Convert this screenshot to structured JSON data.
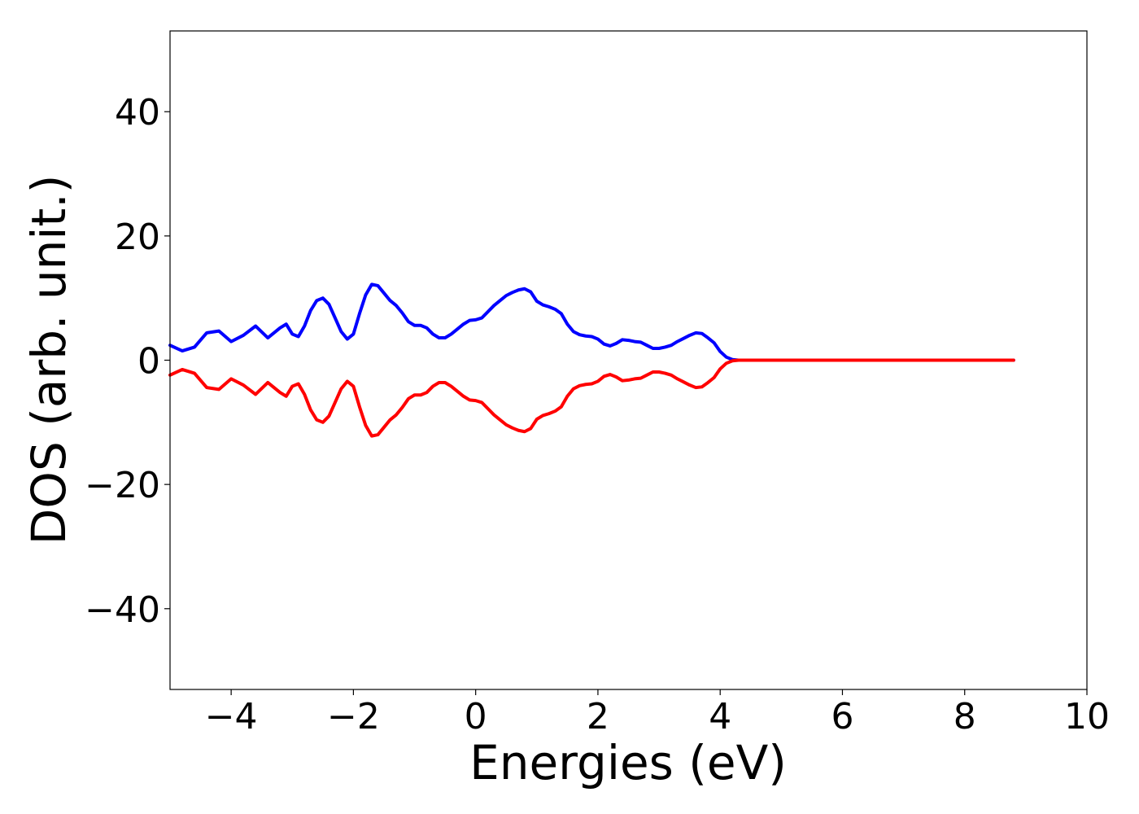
{
  "chart_data": {
    "type": "line",
    "title": "",
    "xlabel": "Energies (eV)",
    "ylabel": "DOS (arb. unit.)",
    "xlim": [
      -5,
      10
    ],
    "ylim": [
      -53,
      53
    ],
    "x_ticks": [
      -4,
      -2,
      0,
      2,
      4,
      6,
      8,
      10
    ],
    "x_tick_labels": [
      "−4",
      "−2",
      "0",
      "2",
      "4",
      "6",
      "8",
      "10"
    ],
    "y_ticks": [
      40,
      20,
      0,
      -20,
      -40
    ],
    "y_tick_labels": [
      "40",
      "20",
      "0",
      "−20",
      "−40"
    ],
    "grid": false,
    "legend": "none",
    "x": [
      -5.0,
      -4.8,
      -4.6,
      -4.4,
      -4.2,
      -4.0,
      -3.8,
      -3.6,
      -3.4,
      -3.2,
      -3.1,
      -3.0,
      -2.9,
      -2.8,
      -2.7,
      -2.6,
      -2.5,
      -2.4,
      -2.3,
      -2.2,
      -2.1,
      -2.0,
      -1.9,
      -1.8,
      -1.7,
      -1.6,
      -1.5,
      -1.4,
      -1.3,
      -1.2,
      -1.1,
      -1.0,
      -0.9,
      -0.8,
      -0.7,
      -0.6,
      -0.5,
      -0.4,
      -0.3,
      -0.2,
      -0.1,
      0.0,
      0.1,
      0.2,
      0.3,
      0.4,
      0.5,
      0.6,
      0.7,
      0.8,
      0.9,
      1.0,
      1.1,
      1.2,
      1.3,
      1.4,
      1.5,
      1.6,
      1.7,
      1.8,
      1.9,
      2.0,
      2.1,
      2.2,
      2.3,
      2.4,
      2.5,
      2.6,
      2.7,
      2.8,
      2.9,
      3.0,
      3.1,
      3.2,
      3.3,
      3.4,
      3.5,
      3.6,
      3.7,
      3.8,
      3.9,
      4.0,
      4.1,
      4.2,
      4.3,
      4.4,
      4.5,
      4.6,
      4.7,
      4.8,
      4.9,
      5.0,
      5.1,
      5.2,
      5.3,
      5.4,
      5.5,
      5.6,
      5.7,
      5.8,
      5.9,
      6.0,
      6.1,
      6.2,
      6.3,
      6.4,
      6.5,
      6.6,
      6.7,
      6.8,
      7.0,
      7.5,
      8.0,
      8.5,
      8.8
    ],
    "series": [
      {
        "color": "#0000ff",
        "values": [
          2.4,
          1.5,
          2.1,
          4.4,
          4.7,
          3.0,
          4.0,
          5.5,
          3.6,
          5.2,
          5.8,
          4.2,
          3.8,
          5.5,
          8.0,
          9.6,
          10.0,
          9.0,
          6.8,
          4.6,
          3.4,
          4.2,
          7.5,
          10.5,
          12.2,
          12.0,
          10.8,
          9.6,
          8.8,
          7.6,
          6.2,
          5.6,
          5.6,
          5.2,
          4.2,
          3.6,
          3.6,
          4.2,
          5.0,
          5.8,
          6.4,
          6.5,
          6.8,
          7.8,
          8.8,
          9.6,
          10.4,
          10.9,
          11.3,
          11.5,
          11.0,
          9.5,
          8.9,
          8.6,
          8.2,
          7.5,
          5.8,
          4.6,
          4.1,
          3.9,
          3.8,
          3.4,
          2.6,
          2.3,
          2.7,
          3.3,
          3.2,
          3.0,
          2.9,
          2.4,
          1.9,
          1.9,
          2.1,
          2.4,
          3.0,
          3.5,
          4.0,
          4.4,
          4.3,
          3.6,
          2.8,
          1.4,
          0.5,
          0.1,
          0.0,
          0.0,
          0.0,
          0.0,
          0.0,
          0.0,
          0.0,
          0.0,
          0.0,
          0.0,
          0.0,
          0.0,
          0.0,
          0.0,
          0.0,
          0.0,
          0.0,
          0.0,
          0.0,
          0.0,
          0.0,
          0.0,
          0.0,
          0.0,
          0.0,
          0.0,
          0.0,
          0.0,
          0.0,
          0.0,
          0.0
        ]
      },
      {
        "color": "#ff0000",
        "values": [
          -2.4,
          -1.5,
          -2.1,
          -4.4,
          -4.7,
          -3.0,
          -4.0,
          -5.5,
          -3.6,
          -5.2,
          -5.8,
          -4.2,
          -3.8,
          -5.5,
          -8.0,
          -9.6,
          -10.0,
          -9.0,
          -6.8,
          -4.6,
          -3.4,
          -4.2,
          -7.5,
          -10.5,
          -12.2,
          -12.0,
          -10.8,
          -9.6,
          -8.8,
          -7.6,
          -6.2,
          -5.6,
          -5.6,
          -5.2,
          -4.2,
          -3.6,
          -3.6,
          -4.2,
          -5.0,
          -5.8,
          -6.4,
          -6.5,
          -6.8,
          -7.8,
          -8.8,
          -9.6,
          -10.4,
          -10.9,
          -11.3,
          -11.5,
          -11.0,
          -9.5,
          -8.9,
          -8.6,
          -8.2,
          -7.5,
          -5.8,
          -4.6,
          -4.1,
          -3.9,
          -3.8,
          -3.4,
          -2.6,
          -2.3,
          -2.7,
          -3.3,
          -3.2,
          -3.0,
          -2.9,
          -2.4,
          -1.9,
          -1.9,
          -2.1,
          -2.4,
          -3.0,
          -3.5,
          -4.0,
          -4.4,
          -4.3,
          -3.6,
          -2.8,
          -1.4,
          -0.5,
          -0.1,
          0.0,
          0.0,
          0.0,
          0.0,
          0.0,
          0.0,
          0.0,
          0.0,
          0.0,
          0.0,
          0.0,
          0.0,
          0.0,
          0.0,
          0.0,
          0.0,
          0.0,
          0.0,
          0.0,
          0.0,
          0.0,
          0.0,
          0.0,
          0.0,
          0.0,
          0.0,
          0.0,
          0.0,
          0.0,
          0.0,
          0.0
        ]
      }
    ]
  }
}
